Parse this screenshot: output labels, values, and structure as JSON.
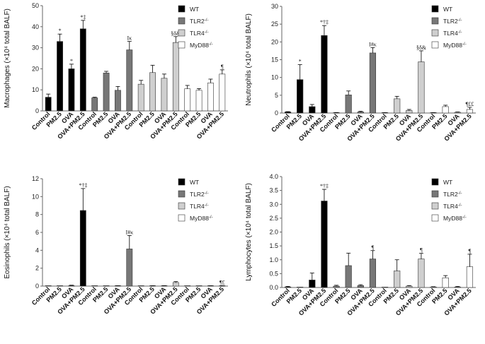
{
  "legend": [
    {
      "label": "WT",
      "sup": "",
      "color": "#000000"
    },
    {
      "label": "TLR2",
      "sup": "-/-",
      "color": "#777777"
    },
    {
      "label": "TLR4",
      "sup": "-/-",
      "color": "#cfcfcf"
    },
    {
      "label": "MyD88",
      "sup": "-/-",
      "color": "#ffffff"
    }
  ],
  "chart_data": [
    {
      "type": "bar",
      "ylabel": "Macrophages (×10⁴ total BALF)",
      "ylim": [
        0,
        50
      ],
      "yticks": [
        0,
        10,
        20,
        30,
        40,
        50
      ],
      "categories": [
        "Control",
        "PM2.5",
        "OVA",
        "OVA+PM2.5",
        "Control",
        "PM2.5",
        "OVA",
        "OVA+PM2.5",
        "Control",
        "PM2.5",
        "OVA",
        "OVA+PM2.5",
        "Control",
        "PM2.5",
        "OVA",
        "OVA+PM2.5"
      ],
      "group_series": [
        "WT",
        "TLR2-/-",
        "TLR4-/-",
        "MyD88-/-"
      ],
      "values": [
        6.5,
        33,
        20,
        39,
        6.2,
        18,
        9.8,
        29,
        12.7,
        18.2,
        15.5,
        32.5,
        10.5,
        9.8,
        13.3,
        17.5
      ],
      "errors": [
        1.5,
        3.5,
        2.2,
        4.0,
        0.3,
        0.8,
        1.8,
        4.0,
        1.8,
        3.5,
        2.0,
        2.8,
        1.6,
        0.8,
        1.8,
        2.0
      ],
      "annotations": [
        "",
        "*",
        "*",
        "*‡",
        "",
        "",
        "",
        "Iκ",
        "",
        "",
        "",
        "§δ&",
        "",
        "",
        "",
        "¶"
      ]
    },
    {
      "type": "bar",
      "ylabel": "Neutrophils (×10⁴ total BALF)",
      "ylim": [
        0,
        30
      ],
      "yticks": [
        0,
        5,
        10,
        15,
        20,
        25,
        30
      ],
      "categories": [
        "Control",
        "PM2.5",
        "OVA",
        "OVA+PM2.5",
        "Control",
        "PM2.5",
        "OVA",
        "OVA+PM2.5",
        "Control",
        "PM2.5",
        "OVA",
        "OVA+PM2.5",
        "Control",
        "PM2.5",
        "OVA",
        "OVA+PM2.5"
      ],
      "group_series": [
        "WT",
        "TLR2-/-",
        "TLR4-/-",
        "MyD88-/-"
      ],
      "values": [
        0.3,
        9.4,
        1.8,
        21.8,
        0.1,
        5.1,
        0.3,
        16.9,
        0.05,
        4.0,
        0.7,
        14.4,
        0.05,
        1.8,
        0.2,
        1.0
      ],
      "errors": [
        0.1,
        4.2,
        0.6,
        2.8,
        0.05,
        1.1,
        0.2,
        1.5,
        0.05,
        0.7,
        0.3,
        3.1,
        0.05,
        0.4,
        0.1,
        0.6
      ],
      "annotations": [
        "",
        "*",
        "",
        "*†‡",
        "",
        "",
        "",
        "I#κ",
        "",
        "",
        "",
        "§δ&",
        "",
        "",
        "",
        "¶££"
      ]
    },
    {
      "type": "bar",
      "ylabel": "Eosinophils (×10⁴ total BALF)",
      "ylim": [
        0,
        12
      ],
      "yticks": [
        0,
        2,
        4,
        6,
        8,
        10,
        12
      ],
      "categories": [
        "Control",
        "PM2.5",
        "OVA",
        "OVA+PM2.5",
        "Control",
        "PM2.5",
        "OVA",
        "OVA+PM2.5",
        "Control",
        "PM2.5",
        "OVA",
        "OVA+PM2.5",
        "Control",
        "PM2.5",
        "OVA",
        "OVA+PM2.5"
      ],
      "group_series": [
        "WT",
        "TLR2-/-",
        "TLR4-/-",
        "MyD88-/-"
      ],
      "values": [
        0.0,
        0.0,
        0.05,
        8.45,
        0.0,
        0.0,
        0.02,
        4.15,
        0.0,
        0.02,
        0.03,
        0.4,
        0.0,
        0.0,
        0.02,
        0.02
      ],
      "errors": [
        0.0,
        0.0,
        0.05,
        2.45,
        0.0,
        0.0,
        0.02,
        1.5,
        0.0,
        0.02,
        0.02,
        0.1,
        0.0,
        0.0,
        0.01,
        0.01
      ],
      "annotations": [
        "",
        "",
        "",
        "*†‡",
        "",
        "",
        "",
        "I#κ",
        "",
        "",
        "",
        "",
        "",
        "",
        "",
        "¶£"
      ]
    },
    {
      "type": "bar",
      "ylabel": "Lymphocytes (×10⁴ total BALF)",
      "ylim": [
        0,
        4.0
      ],
      "yticks": [
        0,
        0.5,
        1.0,
        1.5,
        2.0,
        2.5,
        3.0,
        3.5,
        4.0
      ],
      "categories": [
        "Control",
        "PM2.5",
        "OVA",
        "OVA+PM2.5",
        "Control",
        "PM2.5",
        "OVA",
        "OVA+PM2.5",
        "Control",
        "PM2.5",
        "OVA",
        "OVA+PM2.5",
        "Control",
        "PM2.5",
        "OVA",
        "OVA+PM2.5"
      ],
      "group_series": [
        "WT",
        "TLR2-/-",
        "TLR4-/-",
        "MyD88-/-"
      ],
      "values": [
        0.02,
        0.0,
        0.27,
        3.12,
        0.05,
        0.79,
        0.07,
        1.03,
        0.0,
        0.6,
        0.05,
        1.03,
        0.02,
        0.35,
        0.02,
        0.75
      ],
      "errors": [
        0.02,
        0.0,
        0.25,
        0.42,
        0.03,
        0.45,
        0.03,
        0.3,
        0.0,
        0.4,
        0.02,
        0.2,
        0.01,
        0.08,
        0.02,
        0.45
      ],
      "annotations": [
        "",
        "",
        "",
        "*†‡",
        "",
        "",
        "",
        "¶",
        "",
        "",
        "",
        "¶",
        "",
        "",
        "",
        "¶"
      ]
    }
  ]
}
